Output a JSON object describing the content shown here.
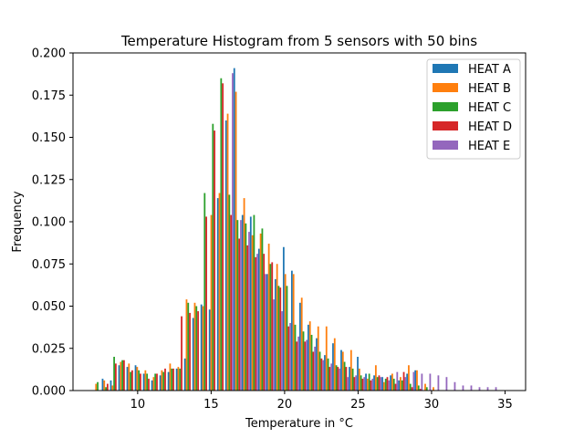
{
  "chart_data": {
    "type": "bar",
    "title": "Temperature Histogram from 5 sensors with 50 bins",
    "xlabel": "Temperature in °C",
    "ylabel": "Frequency",
    "xlim": [
      5.6,
      36.4
    ],
    "ylim": [
      0,
      0.2
    ],
    "x_ticks": [
      10,
      15,
      20,
      25,
      30,
      35
    ],
    "y_ticks": [
      0.0,
      0.025,
      0.05,
      0.075,
      0.1,
      0.125,
      0.15,
      0.175,
      0.2
    ],
    "y_tick_labels": [
      "0.000",
      "0.025",
      "0.050",
      "0.075",
      "0.100",
      "0.125",
      "0.150",
      "0.175",
      "0.200"
    ],
    "legend_position": "top-right",
    "bin_start": 7.0,
    "bin_width": 0.56,
    "series": [
      {
        "name": "HEAT A",
        "color": "#1f77b4",
        "values": [
          0.0,
          0.007,
          0.006,
          0.015,
          0.014,
          0.015,
          0.01,
          0.006,
          0.009,
          0.011,
          0.013,
          0.019,
          0.043,
          0.051,
          0.048,
          0.114,
          0.16,
          0.191,
          0.104,
          0.103,
          0.084,
          0.069,
          0.066,
          0.085,
          0.071,
          0.052,
          0.039,
          0.031,
          0.021,
          0.028,
          0.024,
          0.014,
          0.02,
          0.01,
          0.009,
          0.008,
          0.009,
          0.006,
          0.01,
          0.012,
          0.0,
          0.0,
          0.0,
          0.0,
          0.0,
          0.0,
          0.0,
          0.0,
          0.0,
          0.0
        ]
      },
      {
        "name": "HEAT B",
        "color": "#ff7f0e",
        "values": [
          0.004,
          0.006,
          0.003,
          0.017,
          0.016,
          0.014,
          0.012,
          0.008,
          0.012,
          0.016,
          0.014,
          0.054,
          0.052,
          0.05,
          0.104,
          0.117,
          0.164,
          0.177,
          0.114,
          0.092,
          0.093,
          0.087,
          0.075,
          0.069,
          0.069,
          0.055,
          0.041,
          0.038,
          0.038,
          0.031,
          0.023,
          0.024,
          0.013,
          0.007,
          0.015,
          0.005,
          0.01,
          0.008,
          0.015,
          0.012,
          0.004,
          0.002,
          0.0,
          0.0,
          0.0,
          0.0,
          0.0,
          0.0,
          0.0,
          0.0
        ]
      },
      {
        "name": "HEAT C",
        "color": "#2ca02c",
        "values": [
          0.005,
          0.002,
          0.02,
          0.018,
          0.011,
          0.012,
          0.01,
          0.01,
          0.011,
          0.013,
          0.013,
          0.052,
          0.05,
          0.117,
          0.158,
          0.185,
          0.116,
          0.101,
          0.099,
          0.104,
          0.096,
          0.075,
          0.062,
          0.062,
          0.039,
          0.035,
          0.033,
          0.023,
          0.019,
          0.015,
          0.017,
          0.013,
          0.009,
          0.01,
          0.008,
          0.007,
          0.007,
          0.006,
          0.004,
          0.003,
          0.002,
          0.0,
          0.0,
          0.0,
          0.0,
          0.0,
          0.0,
          0.0,
          0.0,
          0.0
        ]
      },
      {
        "name": "HEAT D",
        "color": "#d62728",
        "values": [
          0.0,
          0.004,
          0.016,
          0.018,
          0.012,
          0.01,
          0.007,
          0.01,
          0.013,
          0.013,
          0.044,
          0.046,
          0.047,
          0.103,
          0.154,
          0.182,
          0.104,
          0.09,
          0.086,
          0.079,
          0.081,
          0.076,
          0.061,
          0.038,
          0.029,
          0.029,
          0.023,
          0.019,
          0.014,
          0.014,
          0.014,
          0.008,
          0.007,
          0.006,
          0.009,
          0.008,
          0.004,
          0.011,
          0.002,
          0.001,
          0.0,
          0.0,
          0.0,
          0.0,
          0.0,
          0.0,
          0.0,
          0.0,
          0.0,
          0.0
        ]
      },
      {
        "name": "HEAT E",
        "color": "#9467bd",
        "values": [
          0.0,
          0.0,
          0.0,
          0.0,
          0.0,
          0.0,
          0.0,
          0.0,
          0.0,
          0.0,
          0.0,
          0.0,
          0.0,
          0.0,
          0.0,
          0.0,
          0.188,
          0.101,
          0.094,
          0.081,
          0.069,
          0.054,
          0.047,
          0.04,
          0.032,
          0.03,
          0.026,
          0.018,
          0.016,
          0.013,
          0.008,
          0.009,
          0.008,
          0.007,
          0.008,
          0.006,
          0.011,
          0.008,
          0.011,
          0.01,
          0.01,
          0.009,
          0.008,
          0.005,
          0.003,
          0.003,
          0.002,
          0.002,
          0.002,
          0.0
        ]
      }
    ]
  }
}
